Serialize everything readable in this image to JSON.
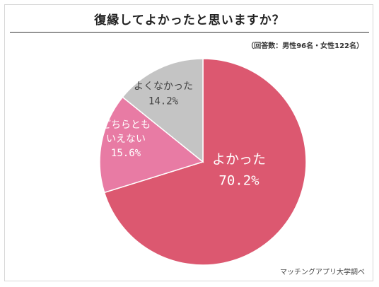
{
  "chart_data": {
    "type": "pie",
    "title": "復縁してよかったと思いますか？",
    "subtitle": "（回答数：男性96名・女性122名）",
    "source": "マッチングアプリ大学調べ",
    "start_angle_deg": 0,
    "direction": "clockwise",
    "slices": [
      {
        "label_lines": [
          "よかった"
        ],
        "value_text": "70.2%",
        "value": 70.2,
        "color": "#dc5870",
        "text_color": "#ffffff"
      },
      {
        "label_lines": [
          "どちらとも",
          "いえない"
        ],
        "value_text": "15.6%",
        "value": 15.6,
        "color": "#e87ba4",
        "text_color": "#ffffff"
      },
      {
        "label_lines": [
          "よくなかった"
        ],
        "value_text": "14.2%",
        "value": 14.2,
        "color": "#c4c4c4",
        "text_color": "#444444"
      }
    ]
  }
}
